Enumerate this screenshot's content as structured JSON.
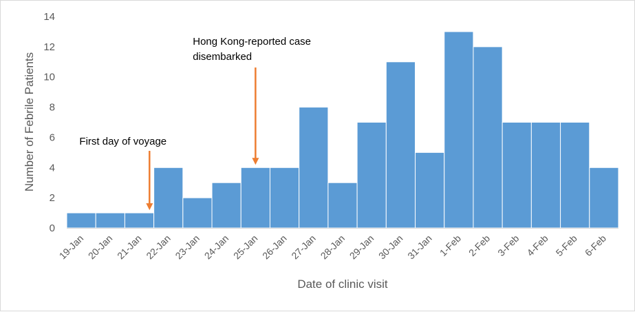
{
  "chart_data": {
    "type": "bar",
    "title": "",
    "xlabel": "Date of clinic visit",
    "ylabel": "Number of Febrile Patients",
    "ylim": [
      0,
      14
    ],
    "yticks": [
      0,
      2,
      4,
      6,
      8,
      10,
      12,
      14
    ],
    "grid": false,
    "bar_color": "#5b9bd5",
    "annotation_color": "#ed7d31",
    "categories": [
      "19-Jan",
      "20-Jan",
      "21-Jan",
      "22-Jan",
      "23-Jan",
      "24-Jan",
      "25-Jan",
      "26-Jan",
      "27-Jan",
      "28-Jan",
      "29-Jan",
      "30-Jan",
      "31-Jan",
      "1-Feb",
      "2-Feb",
      "3-Feb",
      "4-Feb",
      "5-Feb",
      "6-Feb"
    ],
    "values": [
      1,
      1,
      1,
      4,
      2,
      3,
      4,
      4,
      8,
      3,
      7,
      11,
      5,
      13,
      12,
      7,
      7,
      7,
      4
    ],
    "annotations": [
      {
        "lines": [
          "First day of voyage"
        ],
        "category": "21-Jan"
      },
      {
        "lines": [
          "Hong Kong-reported case",
          "disembarked"
        ],
        "category": "25-Jan"
      }
    ]
  }
}
